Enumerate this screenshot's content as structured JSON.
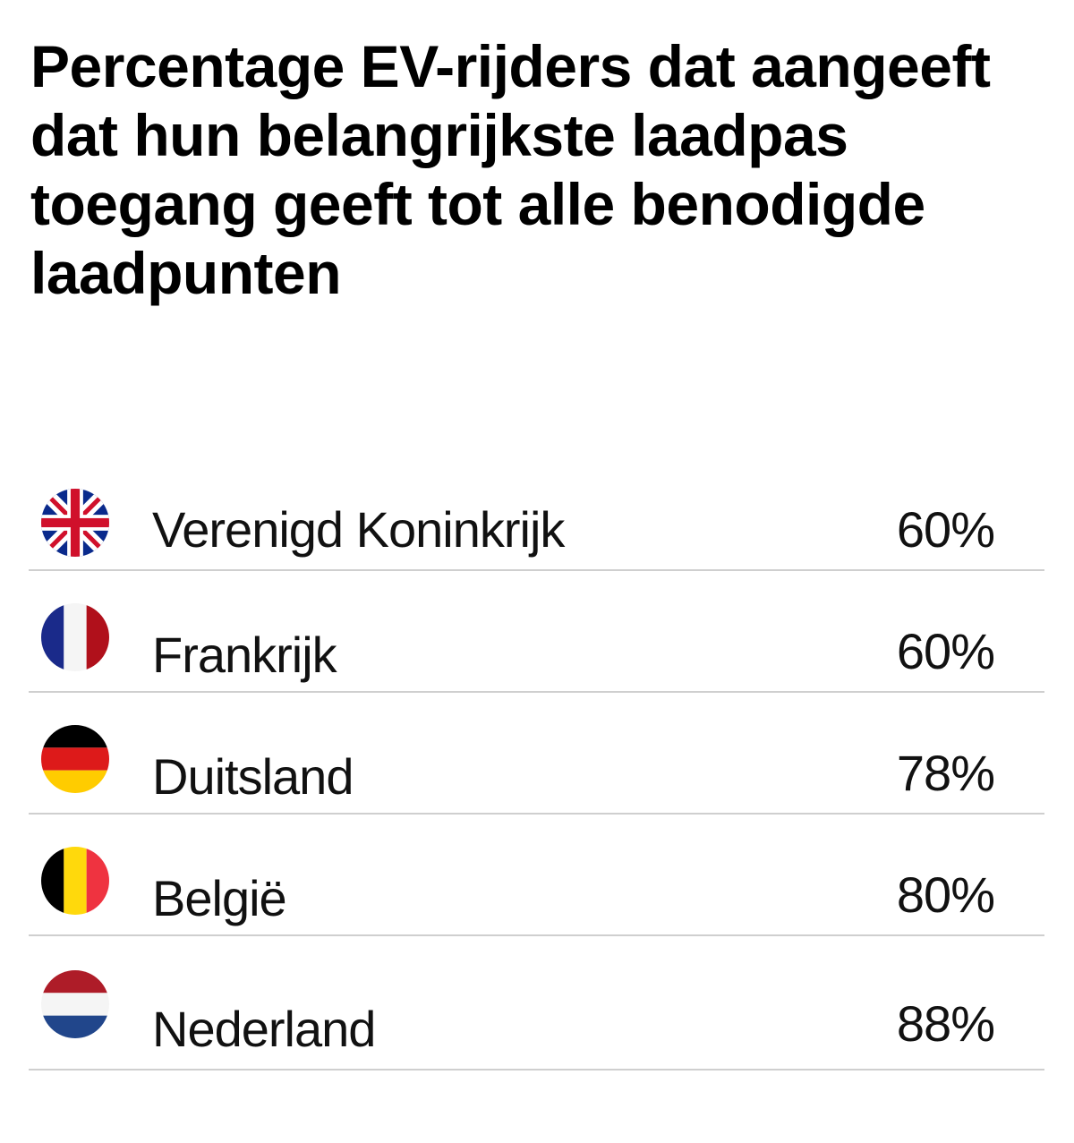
{
  "chart_data": {
    "type": "table",
    "title": "Percentage EV-rijders dat aangeeft dat hun belangrijkste laadpas toegang geeft tot alle benodigde laadpunten",
    "rows": [
      {
        "country": "Verenigd Koninkrijk",
        "value": "60%",
        "flag": "uk-flag-icon"
      },
      {
        "country": "Frankrijk",
        "value": "60%",
        "flag": "france-flag-icon"
      },
      {
        "country": "Duitsland",
        "value": "78%",
        "flag": "germany-flag-icon"
      },
      {
        "country": "België",
        "value": "80%",
        "flag": "belgium-flag-icon"
      },
      {
        "country": "Nederland",
        "value": "88%",
        "flag": "netherlands-flag-icon"
      }
    ],
    "values": [
      60,
      60,
      78,
      80,
      88
    ]
  },
  "colors": {
    "divider": "#cfcfcf",
    "text": "#111111"
  }
}
